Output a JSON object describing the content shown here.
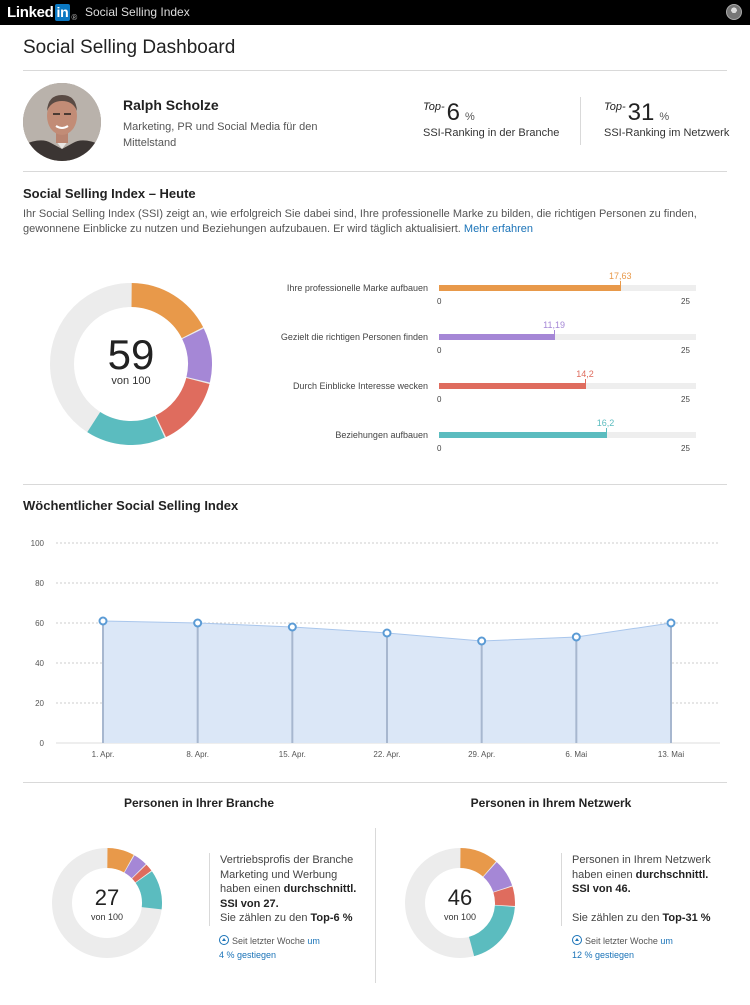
{
  "topbar": {
    "logo_text": "Linked",
    "logo_in": "in",
    "logo_reg": "®",
    "title": "Social Selling Index"
  },
  "page": {
    "title": "Social Selling Dashboard"
  },
  "profile": {
    "name": "Ralph Scholze",
    "headline": "Marketing, PR und Social Media für den Mittelstand"
  },
  "ranks": [
    {
      "prefix": "Top-",
      "value": "6",
      "unit": "%",
      "label": "SSI-Ranking in der Branche"
    },
    {
      "prefix": "Top-",
      "value": "31",
      "unit": "%",
      "label": "SSI-Ranking im Netzwerk"
    }
  ],
  "ssi_today": {
    "heading": "Social Selling Index – Heute",
    "intro": "Ihr Social Selling Index (SSI) zeigt an, wie erfolgreich Sie dabei sind, Ihre professionelle Marke zu bilden, die richtigen Personen zu finden, gewonnene Einblicke zu nutzen und Beziehungen aufzubauen. Er wird täglich aktualisiert.",
    "more_link": "Mehr erfahren",
    "score": "59",
    "score_sub": "von 100",
    "components": [
      {
        "label": "Ihre professionelle Marke aufbauen",
        "value": 17.63,
        "value_text": "17,63",
        "color": "#e8994a"
      },
      {
        "label": "Gezielt die richtigen Personen finden",
        "value": 11.19,
        "value_text": "11,19",
        "color": "#a587d6"
      },
      {
        "label": "Durch Einblicke Interesse wecken",
        "value": 14.2,
        "value_text": "14,2",
        "color": "#df6c5e"
      },
      {
        "label": "Beziehungen aufbauen",
        "value": 16.2,
        "value_text": "16,2",
        "color": "#5bbcbf"
      }
    ],
    "axis_min": "0",
    "axis_max": "25"
  },
  "weekly": {
    "heading": "Wöchentlicher Social Selling Index"
  },
  "chart_data": {
    "type": "area",
    "title": "Wöchentlicher Social Selling Index",
    "categories": [
      "1. Apr.",
      "8. Apr.",
      "15. Apr.",
      "22. Apr.",
      "29. Apr.",
      "6. Mai",
      "13. Mai"
    ],
    "values": [
      61,
      60,
      58,
      55,
      51,
      53,
      60
    ],
    "ylim": [
      0,
      100
    ],
    "yticks": [
      0,
      20,
      40,
      60,
      80,
      100
    ],
    "grid": true,
    "line_color": "#5b9bd5",
    "fill_color": "#dbe7f7"
  },
  "branche": {
    "title": "Personen in Ihrer Branche",
    "score": "27",
    "score_sub": "von 100",
    "desc_1": "Vertriebsprofis der Branche Marketing und Werbung haben einen",
    "desc_bold": "durchschnittl. SSI von 27.",
    "desc_2": "Sie zählen zu den",
    "desc_bold_2": "Top-6 %",
    "trend_1": "Seit letzter Woche",
    "trend_um": "um",
    "trend_2": "4 % gestiegen",
    "segments": [
      8.2,
      4.4,
      2.5,
      11.9
    ],
    "colors": [
      "#e8994a",
      "#a587d6",
      "#df6c5e",
      "#5bbcbf"
    ]
  },
  "netzwerk": {
    "title": "Personen in Ihrem Netzwerk",
    "score": "46",
    "score_sub": "von 100",
    "desc_1": "Personen in Ihrem Netzwerk haben einen",
    "desc_bold": "durchschnittl. SSI von 46.",
    "desc_2": "Sie zählen zu den",
    "desc_bold_2": "Top-31 %",
    "trend_1": "Seit letzter Woche",
    "trend_um": "um",
    "trend_2": "12 % gestiegen",
    "segments": [
      11.5,
      8.5,
      6.0,
      20.0
    ],
    "colors": [
      "#e8994a",
      "#a587d6",
      "#df6c5e",
      "#5bbcbf"
    ]
  }
}
